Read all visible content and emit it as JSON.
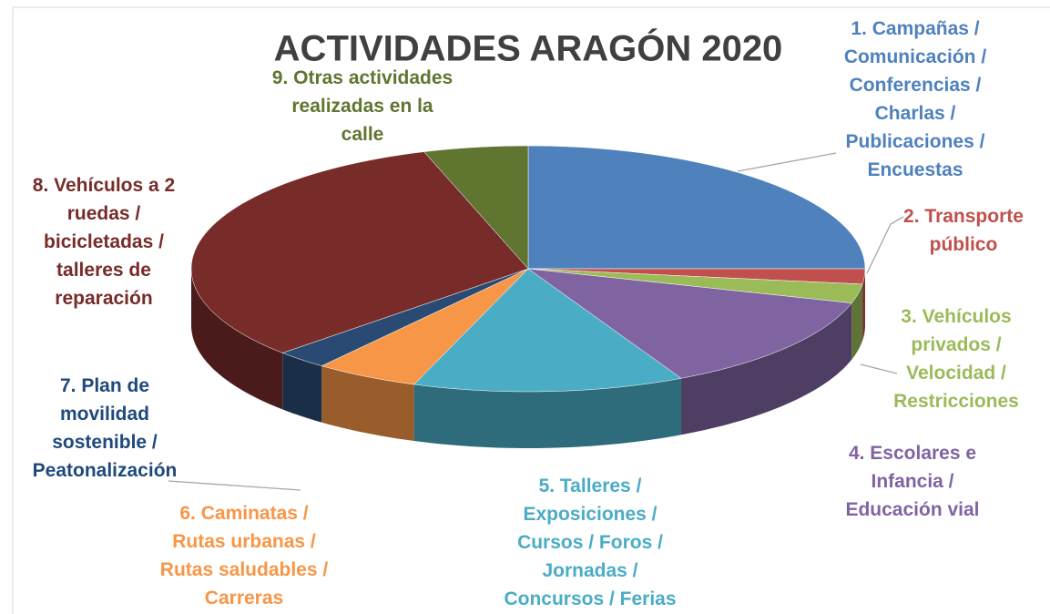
{
  "chart_data": {
    "type": "pie",
    "title": "ACTIVIDADES ARAGÓN 2020",
    "categories": [
      "1. Campañas / Comunicación / Conferencias / Charlas / Publicaciones / Encuestas",
      "2. Transporte público",
      "3. Vehículos privados / Velocidad / Restricciones",
      "4. Escolares e Infancia / Educación vial",
      "5. Talleres / Exposiciones / Cursos / Foros / Jornadas / Concursos / Ferias",
      "6. Caminatas / Rutas urbanas / Rutas saludables / Carreras",
      "7. Plan de movilidad sostenible / Peatonalización",
      "8. Vehículos a 2 ruedas / bicicletadas / talleres de reparación",
      "9. Otras actividades realizadas en la calle"
    ],
    "values": [
      25,
      2,
      2.5,
      13,
      13,
      5,
      2.5,
      32,
      5
    ],
    "colors": [
      "#4f81bd",
      "#c0504d",
      "#9bbb59",
      "#8064a2",
      "#4bacc6",
      "#f79646",
      "#2a4a73",
      "#772c2a",
      "#5f7530"
    ]
  }
}
